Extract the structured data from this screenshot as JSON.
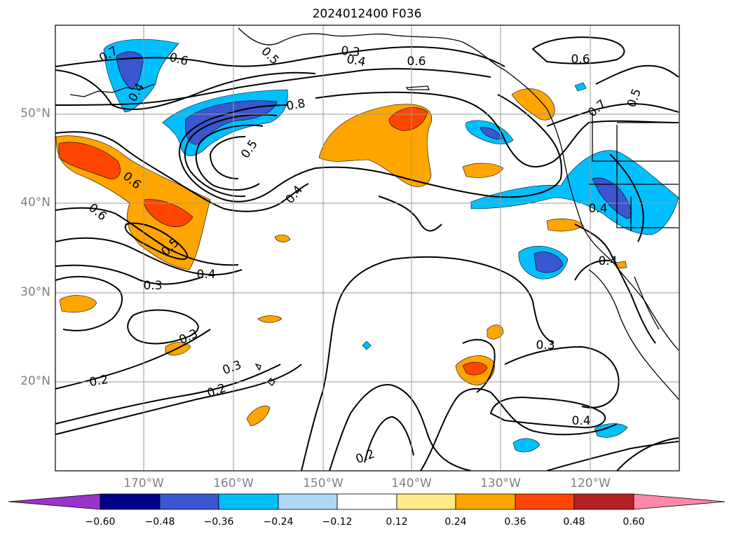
{
  "title": "2024012400 F036",
  "map": {
    "lat_labels": [
      "50°N",
      "40°N",
      "30°N",
      "20°N"
    ],
    "lon_labels": [
      "170°W",
      "160°W",
      "150°W",
      "140°W",
      "130°W",
      "120°W"
    ],
    "contour_labels": [
      "0.7",
      "0.6",
      "0.5",
      "0.3",
      "0.4",
      "0.6",
      "0.6",
      "0.4",
      "0.5",
      "0.7",
      "0.8",
      "0.5",
      "0.4",
      "0.6",
      "0.6",
      "0.5",
      "0.4",
      "0.3",
      "0.4",
      "0.4",
      "0.3",
      "0.3",
      "0.2",
      "0.2",
      "0.3",
      "0.4",
      "0.2"
    ]
  },
  "colorbar": {
    "ticks": [
      "−0.60",
      "−0.48",
      "−0.36",
      "−0.24",
      "−0.12",
      "0.12",
      "0.24",
      "0.36",
      "0.48",
      "0.60"
    ],
    "colors": [
      "#9933cc",
      "#00008b",
      "#3a56d0",
      "#00bfff",
      "#add8f5",
      "#ffffff",
      "#ffec8b",
      "#ffa500",
      "#ff4500",
      "#b22222",
      "#ff88aa"
    ]
  }
}
